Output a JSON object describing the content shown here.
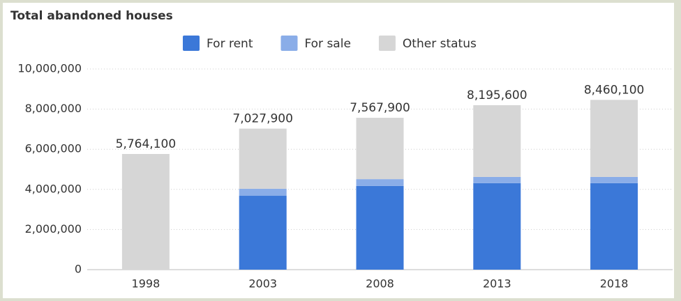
{
  "chart_data": {
    "type": "stacked-bar",
    "title": "Total abandoned houses",
    "categories": [
      "1998",
      "2003",
      "2008",
      "2013",
      "2018"
    ],
    "series": [
      {
        "name": "For rent",
        "color": "#3b78d8",
        "values": [
          null,
          3680000,
          4170000,
          4310000,
          4310000
        ]
      },
      {
        "name": "For sale",
        "color": "#8aade8",
        "values": [
          null,
          350000,
          340000,
          310000,
          310000
        ]
      },
      {
        "name": "Other status",
        "color": "#d6d6d6",
        "values": [
          5764100,
          2997900,
          3057900,
          3575600,
          3840100
        ]
      }
    ],
    "totals": {
      "values": [
        5764100,
        7027900,
        7567900,
        8195600,
        8460100
      ],
      "value_labels": [
        "5,764,100",
        "7,027,900",
        "7,567,900",
        "8,195,600",
        "8,460,100"
      ]
    },
    "ylim": [
      0,
      10000000
    ],
    "yticks": [
      0,
      {
        "value": 2000000,
        "label": "2,000,000"
      },
      {
        "value": 4000000,
        "label": "4,000,000"
      },
      {
        "value": 6000000,
        "label": "6,000,000"
      },
      {
        "value": 8000000,
        "label": "8,000,000"
      },
      {
        "value": 10000000,
        "label": "10,000,000"
      }
    ],
    "grid": true,
    "legend": "top"
  }
}
